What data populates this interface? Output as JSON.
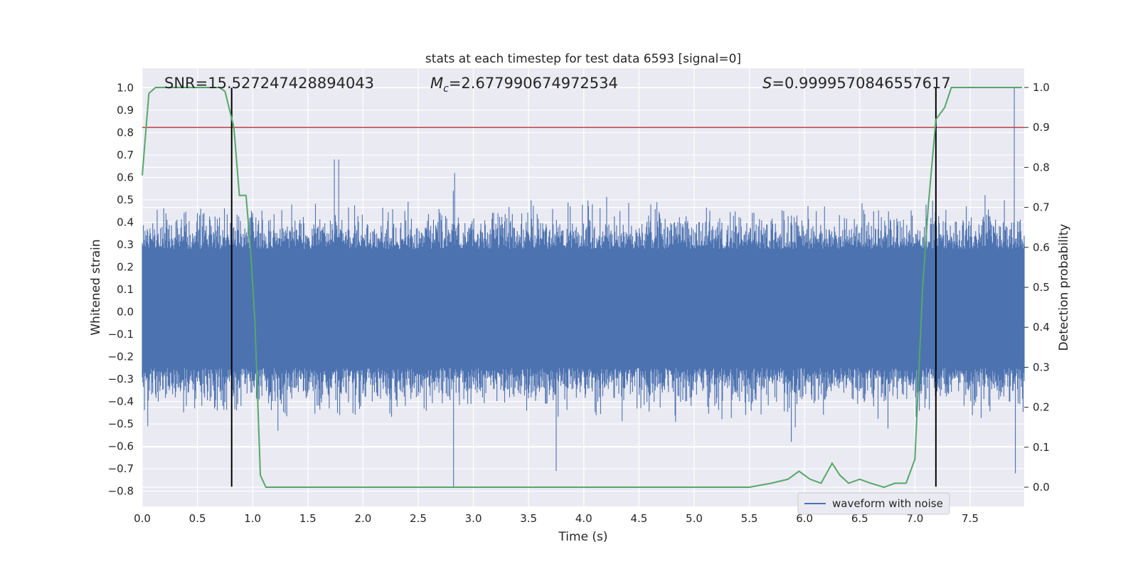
{
  "chart_data": {
    "type": "line",
    "title": "stats at each timestep for test data 6593 [signal=0]",
    "xlabel": "Time (s)",
    "ylabel": "Whitened strain",
    "y2label": "Detection probability",
    "xlim": [
      0.0,
      7.99
    ],
    "ylim": [
      -0.868,
      1.087
    ],
    "y2lim": [
      -0.048,
      1.048
    ],
    "xticks": [
      0.0,
      0.5,
      1.0,
      1.5,
      2.0,
      2.5,
      3.0,
      3.5,
      4.0,
      4.5,
      5.0,
      5.5,
      6.0,
      6.5,
      7.0,
      7.5
    ],
    "xtick_labels": [
      "0.0",
      "0.5",
      "1.0",
      "1.5",
      "2.0",
      "2.5",
      "3.0",
      "3.5",
      "4.0",
      "4.5",
      "5.0",
      "5.5",
      "6.0",
      "6.5",
      "7.0",
      "7.5"
    ],
    "yticks": [
      1.0,
      0.9,
      0.8,
      0.7,
      0.6,
      0.5,
      0.4,
      0.3,
      0.2,
      0.1,
      0.0,
      -0.1,
      -0.2,
      -0.3,
      -0.4,
      -0.5,
      -0.6,
      -0.7,
      -0.8
    ],
    "ytick_labels": [
      "1.0",
      "0.9",
      "0.8",
      "0.7",
      "0.6",
      "0.5",
      "0.4",
      "0.3",
      "0.2",
      "0.1",
      "0.0",
      "−0.1",
      "−0.2",
      "−0.3",
      "−0.4",
      "−0.5",
      "−0.6",
      "−0.7",
      "−0.8"
    ],
    "y2ticks": [
      1.0,
      0.9,
      0.8,
      0.7,
      0.6,
      0.5,
      0.4,
      0.3,
      0.2,
      0.1,
      0.0
    ],
    "y2tick_labels": [
      "1.0",
      "0.9",
      "0.8",
      "0.7",
      "0.6",
      "0.5",
      "0.4",
      "0.3",
      "0.2",
      "0.1",
      "0.0"
    ],
    "grid": true,
    "legend": {
      "entries": [
        "waveform with noise"
      ],
      "placement": "lower-right"
    },
    "annotations": {
      "snr": {
        "prefix": "SNR=",
        "value": "15.527247428894043"
      },
      "mc": {
        "symbol": "M",
        "subscript": "c",
        "value": "=2.677990674972534"
      },
      "s": {
        "symbol": "S",
        "value": "=0.9999570846557617"
      }
    },
    "threshold": {
      "axis": "y2",
      "value": 0.9
    },
    "vertical_lines": [
      {
        "x": 0.81,
        "y_from": -0.78,
        "y_to": 1.0
      },
      {
        "x": 7.19,
        "y_from": -0.78,
        "y_to": 1.0
      }
    ],
    "series": [
      {
        "name": "waveform with noise",
        "axis": "y",
        "kind": "noisy-strain",
        "sample_count": 1600,
        "sigma": 0.1,
        "dense_band": [
          -0.25,
          0.28
        ],
        "peaks": [
          {
            "x": 0.05,
            "value": -0.51
          },
          {
            "x": 0.53,
            "value": 0.46
          },
          {
            "x": 1.74,
            "value": 0.68
          },
          {
            "x": 1.78,
            "value": 0.68
          },
          {
            "x": 2.82,
            "value": -0.78
          },
          {
            "x": 2.83,
            "value": 0.62
          },
          {
            "x": 3.75,
            "value": -0.71
          },
          {
            "x": 5.88,
            "value": -0.58
          },
          {
            "x": 7.9,
            "value": 1.0
          },
          {
            "x": 7.91,
            "value": -0.72
          }
        ]
      },
      {
        "name": "detection probability",
        "axis": "y2",
        "kind": "line",
        "x": [
          0.0,
          0.06,
          0.12,
          0.2,
          0.3,
          0.5,
          0.7,
          0.75,
          0.83,
          0.88,
          0.94,
          0.98,
          1.02,
          1.07,
          1.12,
          1.3,
          1.5,
          1.7,
          2.0,
          2.5,
          3.0,
          3.5,
          4.0,
          4.5,
          5.0,
          5.5,
          5.7,
          5.85,
          5.95,
          6.05,
          6.15,
          6.25,
          6.32,
          6.4,
          6.5,
          6.6,
          6.72,
          6.82,
          6.92,
          7.0,
          7.07,
          7.12,
          7.19,
          7.27,
          7.33,
          7.45,
          7.6,
          7.8,
          7.97
        ],
        "y": [
          0.78,
          0.985,
          1.0,
          1.0,
          1.0,
          1.0,
          1.0,
          0.99,
          0.9,
          0.73,
          0.73,
          0.6,
          0.42,
          0.03,
          0.0,
          0.0,
          0.0,
          0.0,
          0.0,
          0.0,
          0.0,
          0.0,
          0.0,
          0.0,
          0.0,
          0.0,
          0.01,
          0.02,
          0.04,
          0.02,
          0.01,
          0.06,
          0.03,
          0.01,
          0.02,
          0.01,
          0.0,
          0.01,
          0.01,
          0.07,
          0.5,
          0.7,
          0.92,
          0.95,
          1.0,
          1.0,
          1.0,
          1.0,
          1.0
        ]
      }
    ],
    "colors": {
      "plot_bg": "#eaeaf2",
      "grid": "#ffffff",
      "waveform": "#4c72b0",
      "probability": "#55a868",
      "threshold": "#c44e52",
      "vline": "#000000"
    }
  }
}
